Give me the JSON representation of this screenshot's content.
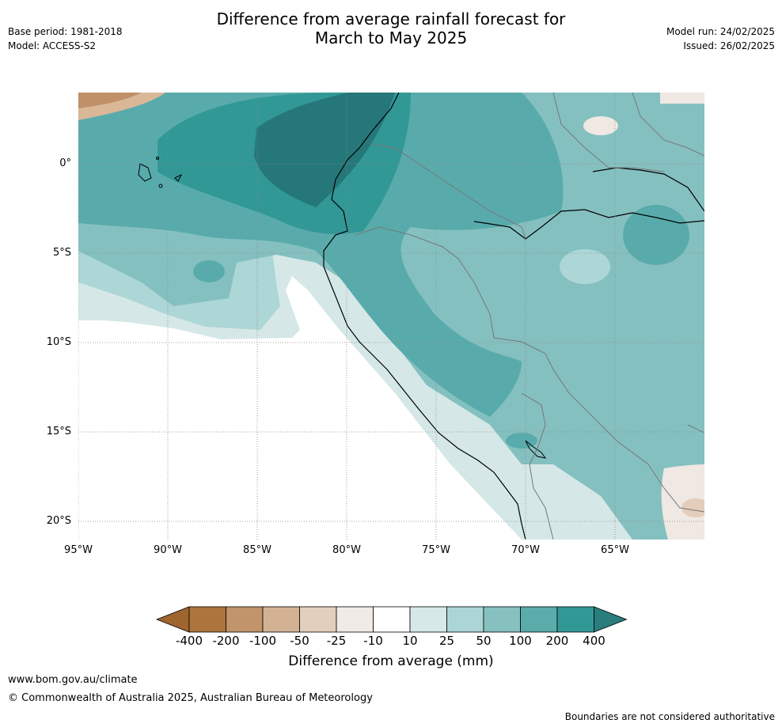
{
  "header": {
    "title_line1": "Difference from average rainfall forecast for",
    "title_line2": "March to May 2025",
    "base_period": "Base period: 1981-2018",
    "model": "Model: ACCESS-S2",
    "model_run": "Model run: 24/02/2025",
    "issued": "Issued: 26/02/2025"
  },
  "map": {
    "lat_labels": [
      "0°",
      "5°S",
      "10°S",
      "15°S",
      "20°S"
    ],
    "lon_labels": [
      "95°W",
      "90°W",
      "85°W",
      "80°W",
      "75°W",
      "70°W",
      "65°W"
    ],
    "palette": {
      "ocean_none": "#ffffff",
      "dry_200": "#c09068",
      "dry_50": "#d9b898",
      "dry_25": "#e4cdbb",
      "dry_10": "#efe8e3",
      "wet_10": "#d5e8e7",
      "wet_25": "#add6d6",
      "wet_50": "#85c0c0",
      "wet_100": "#59abab",
      "wet_200": "#319896",
      "wet_400": "#26777a"
    }
  },
  "colorbar": {
    "title": "Difference from average (mm)",
    "tick_labels": [
      "-400",
      "-200",
      "-100",
      "-50",
      "-25",
      "-10",
      "10",
      "25",
      "50",
      "100",
      "200",
      "400"
    ],
    "colors": [
      "#9e652f",
      "#ae743e",
      "#c1946b",
      "#d3b294",
      "#e3cfbe",
      "#f0ebe7",
      "#ffffff",
      "#d6e9e8",
      "#acd6d5",
      "#86c1c0",
      "#5aacab",
      "#329896",
      "#2a7d7d"
    ]
  },
  "footer": {
    "url": "www.bom.gov.au/climate",
    "copyright": "© Commonwealth of Australia 2025, Australian Bureau of Meteorology",
    "disclaimer": "Boundaries are not considered authoritative"
  }
}
